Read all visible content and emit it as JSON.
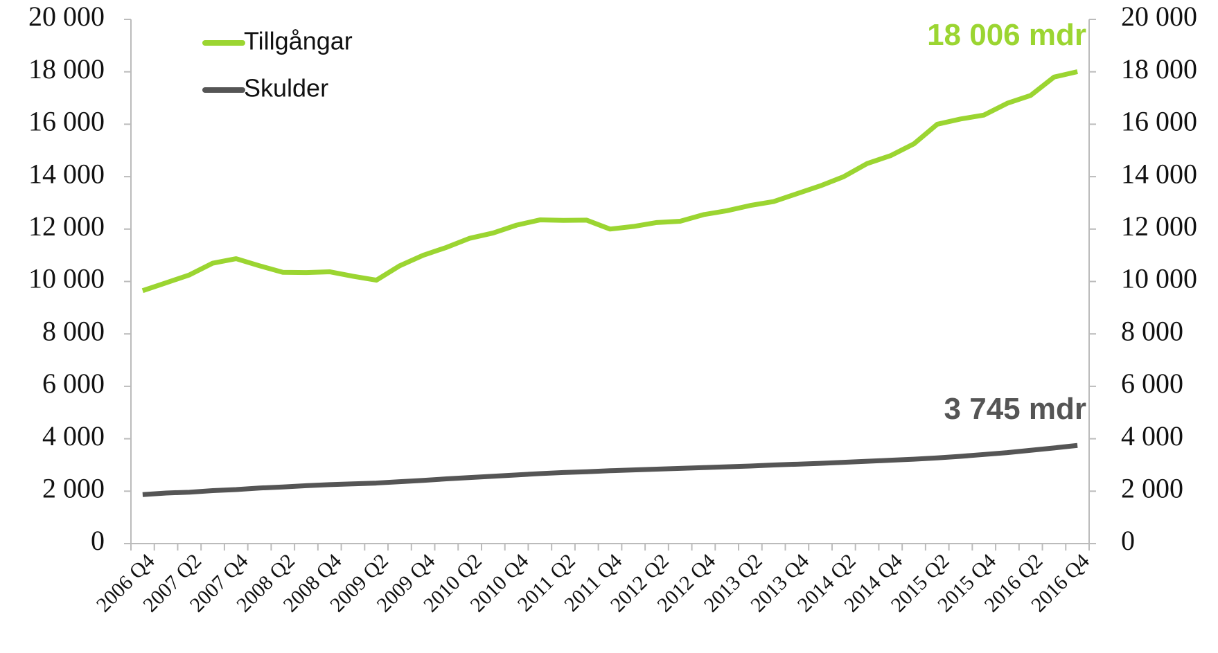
{
  "chart_data": {
    "type": "line",
    "categories": [
      "2006 Q4",
      null,
      "2007 Q2",
      null,
      "2007 Q4",
      null,
      "2008 Q2",
      null,
      "2008 Q4",
      null,
      "2009 Q2",
      null,
      "2009 Q4",
      null,
      "2010 Q2",
      null,
      "2010 Q4",
      null,
      "2011 Q2",
      null,
      "2011 Q4",
      null,
      "2012 Q2",
      null,
      "2012 Q4",
      null,
      "2013 Q2",
      null,
      "2013 Q4",
      null,
      "2014 Q2",
      null,
      "2014 Q4",
      null,
      "2015 Q2",
      null,
      "2015 Q4",
      null,
      "2016 Q2",
      null,
      "2016 Q4"
    ],
    "series": [
      {
        "name": "Tillgångar",
        "color": "#9bd531",
        "values": [
          9650,
          9950,
          10250,
          10700,
          10870,
          10600,
          10350,
          10340,
          10370,
          10200,
          10050,
          10600,
          11000,
          11300,
          11650,
          11850,
          12150,
          12350,
          12330,
          12340,
          12000,
          12100,
          12250,
          12300,
          12550,
          12700,
          12900,
          13050,
          13350,
          13650,
          14000,
          14500,
          14800,
          15250,
          16000,
          16200,
          16350,
          16800,
          17100,
          17800,
          18006
        ]
      },
      {
        "name": "Skulder",
        "color": "#555555",
        "values": [
          1870,
          1930,
          1960,
          2020,
          2060,
          2120,
          2160,
          2210,
          2250,
          2280,
          2310,
          2360,
          2410,
          2470,
          2520,
          2570,
          2620,
          2670,
          2710,
          2740,
          2780,
          2810,
          2840,
          2870,
          2900,
          2930,
          2960,
          3000,
          3030,
          3060,
          3100,
          3140,
          3180,
          3220,
          3270,
          3330,
          3400,
          3470,
          3560,
          3650,
          3745
        ]
      }
    ],
    "annotations": [
      "18 006 mdr",
      "3 745 mdr"
    ],
    "ylim": [
      0,
      20000
    ],
    "yticks": [
      0,
      {
        "value": 2000,
        "label": "2 000"
      },
      {
        "value": 4000,
        "label": "4 000"
      },
      {
        "value": 6000,
        "label": "6 000"
      },
      {
        "value": 8000,
        "label": "8 000"
      },
      {
        "value": 10000,
        "label": "10 000"
      },
      {
        "value": 12000,
        "label": "12 000"
      },
      {
        "value": 14000,
        "label": "14 000"
      },
      {
        "value": 16000,
        "label": "16 000"
      },
      {
        "value": 18000,
        "label": "18 000"
      },
      {
        "value": 20000,
        "label": "20 000"
      }
    ],
    "y2lim": [
      0,
      20000
    ],
    "y2ticks": [
      0,
      {
        "value": 2000,
        "label": "2 000"
      },
      {
        "value": 4000,
        "label": "4 000"
      },
      {
        "value": 6000,
        "label": "6 000"
      },
      {
        "value": 8000,
        "label": "8 000"
      },
      {
        "value": 10000,
        "label": "10 000"
      },
      {
        "value": 12000,
        "label": "12 000"
      },
      {
        "value": 14000,
        "label": "14 000"
      },
      {
        "value": 16000,
        "label": "16 000"
      },
      {
        "value": 18000,
        "label": "18 000"
      },
      {
        "value": 20000,
        "label": "20 000"
      }
    ],
    "legend": "upper left",
    "grid": false
  }
}
